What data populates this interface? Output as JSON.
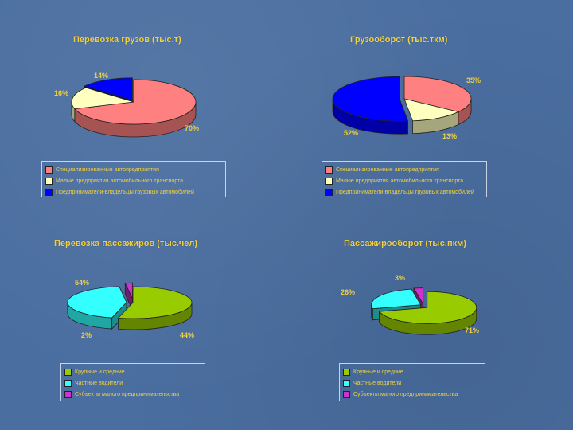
{
  "chart_data": [
    {
      "type": "pie",
      "title": "Перевозка грузов (тыс.т)",
      "categories": [
        "Специализированные автопредприятия",
        "Малые предприятия автомобильного транспорта",
        "Предприниматели-владельцы грузовых автомобилей"
      ],
      "values": [
        70,
        16,
        14
      ],
      "labels": [
        "70%",
        "16%",
        "14%"
      ],
      "colors": [
        "#ff8080",
        "#ffffc0",
        "#0000ff"
      ],
      "legend": "bottom"
    },
    {
      "type": "pie",
      "title": "Грузооборот (тыс.ткм)",
      "categories": [
        "Специализированные автопредприятия",
        "Малые предприятия автомобильного транспорта",
        "Предприниматели-владельцы грузовых автомобилей"
      ],
      "values": [
        35,
        13,
        52
      ],
      "labels": [
        "35%",
        "13%",
        "52%"
      ],
      "colors": [
        "#ff8080",
        "#ffffc0",
        "#0000ff"
      ],
      "legend": "bottom"
    },
    {
      "type": "pie",
      "title": "Перевозка пассажиров (тыс.чел)",
      "categories": [
        "Крупные и средние",
        "Частные водители",
        "Субъекты малого предпринимательства"
      ],
      "values": [
        54,
        44,
        2
      ],
      "labels": [
        "54%",
        "44%",
        "2%"
      ],
      "colors": [
        "#99cc00",
        "#33ffff",
        "#cc33cc"
      ],
      "legend": "bottom"
    },
    {
      "type": "pie",
      "title": "Пассажирооборот (тыс.пкм)",
      "categories": [
        "Крупные и средние",
        "Частные водители",
        "Субъекты малого предпринимательства"
      ],
      "values": [
        71,
        26,
        3
      ],
      "labels": [
        "71%",
        "26%",
        "3%"
      ],
      "colors": [
        "#99cc00",
        "#33ffff",
        "#cc33cc"
      ],
      "legend": "bottom"
    }
  ]
}
